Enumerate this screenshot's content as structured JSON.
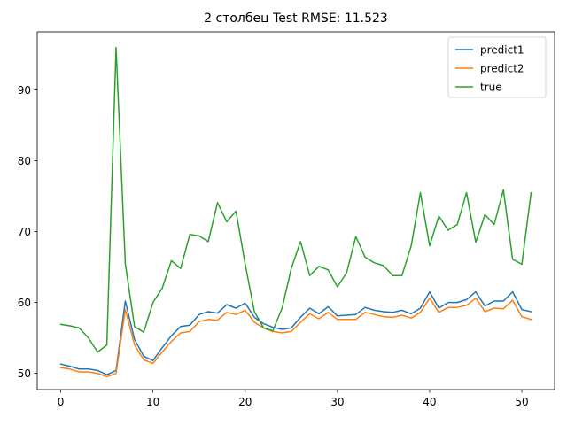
{
  "chart_data": {
    "type": "line",
    "title": "2 столбец Test RMSE: 11.523",
    "xlabel": "",
    "ylabel": "",
    "xlim": [
      -2.55,
      53.55
    ],
    "ylim": [
      47.7,
      98.2
    ],
    "xticks": [
      0,
      10,
      20,
      30,
      40,
      50
    ],
    "yticks": [
      50,
      60,
      70,
      80,
      90
    ],
    "grid": false,
    "legend_position": "top-right",
    "x": [
      0,
      1,
      2,
      3,
      4,
      5,
      6,
      7,
      8,
      9,
      10,
      11,
      12,
      13,
      14,
      15,
      16,
      17,
      18,
      19,
      20,
      21,
      22,
      23,
      24,
      25,
      26,
      27,
      28,
      29,
      30,
      31,
      32,
      33,
      34,
      35,
      36,
      37,
      38,
      39,
      40,
      41,
      42,
      43,
      44,
      45,
      46,
      47,
      48,
      49,
      50,
      51
    ],
    "series": [
      {
        "name": "predict1",
        "color": "#1f77b4",
        "values": [
          51.3,
          51.0,
          50.6,
          50.6,
          50.4,
          49.8,
          50.4,
          60.2,
          54.8,
          52.4,
          51.8,
          53.6,
          55.3,
          56.6,
          56.8,
          58.3,
          58.7,
          58.5,
          59.7,
          59.2,
          59.9,
          57.9,
          57.0,
          56.5,
          56.2,
          56.4,
          57.9,
          59.2,
          58.4,
          59.4,
          58.1,
          58.2,
          58.3,
          59.3,
          58.9,
          58.7,
          58.6,
          58.9,
          58.4,
          59.2,
          61.5,
          59.2,
          60.0,
          60.0,
          60.4,
          61.5,
          59.5,
          60.2,
          60.2,
          61.5,
          59.0,
          58.7
        ]
      },
      {
        "name": "predict2",
        "color": "#ff7f0e",
        "values": [
          50.8,
          50.6,
          50.2,
          50.2,
          50.0,
          49.5,
          50.0,
          59.0,
          54.0,
          51.9,
          51.4,
          53.0,
          54.5,
          55.7,
          55.9,
          57.3,
          57.6,
          57.5,
          58.6,
          58.3,
          58.9,
          57.2,
          56.4,
          55.9,
          55.7,
          55.9,
          57.2,
          58.4,
          57.7,
          58.6,
          57.6,
          57.6,
          57.6,
          58.6,
          58.3,
          58.0,
          57.9,
          58.2,
          57.8,
          58.6,
          60.6,
          58.6,
          59.3,
          59.3,
          59.6,
          60.6,
          58.7,
          59.2,
          59.1,
          60.3,
          58.0,
          57.6
        ]
      },
      {
        "name": "true",
        "color": "#2ca02c",
        "values": [
          56.9,
          56.7,
          56.4,
          55.0,
          53.0,
          54.0,
          96.0,
          65.5,
          56.6,
          55.8,
          60.0,
          62.0,
          65.9,
          64.8,
          69.6,
          69.4,
          68.6,
          74.1,
          71.4,
          72.9,
          65.4,
          58.7,
          56.4,
          56.0,
          59.2,
          64.8,
          68.6,
          63.8,
          65.1,
          64.6,
          62.2,
          64.2,
          69.3,
          66.4,
          65.6,
          65.2,
          63.8,
          63.8,
          68.0,
          75.5,
          68.0,
          72.2,
          70.2,
          71.0,
          75.5,
          68.5,
          72.4,
          71.0,
          75.9,
          66.1,
          65.4,
          75.5
        ]
      }
    ]
  }
}
